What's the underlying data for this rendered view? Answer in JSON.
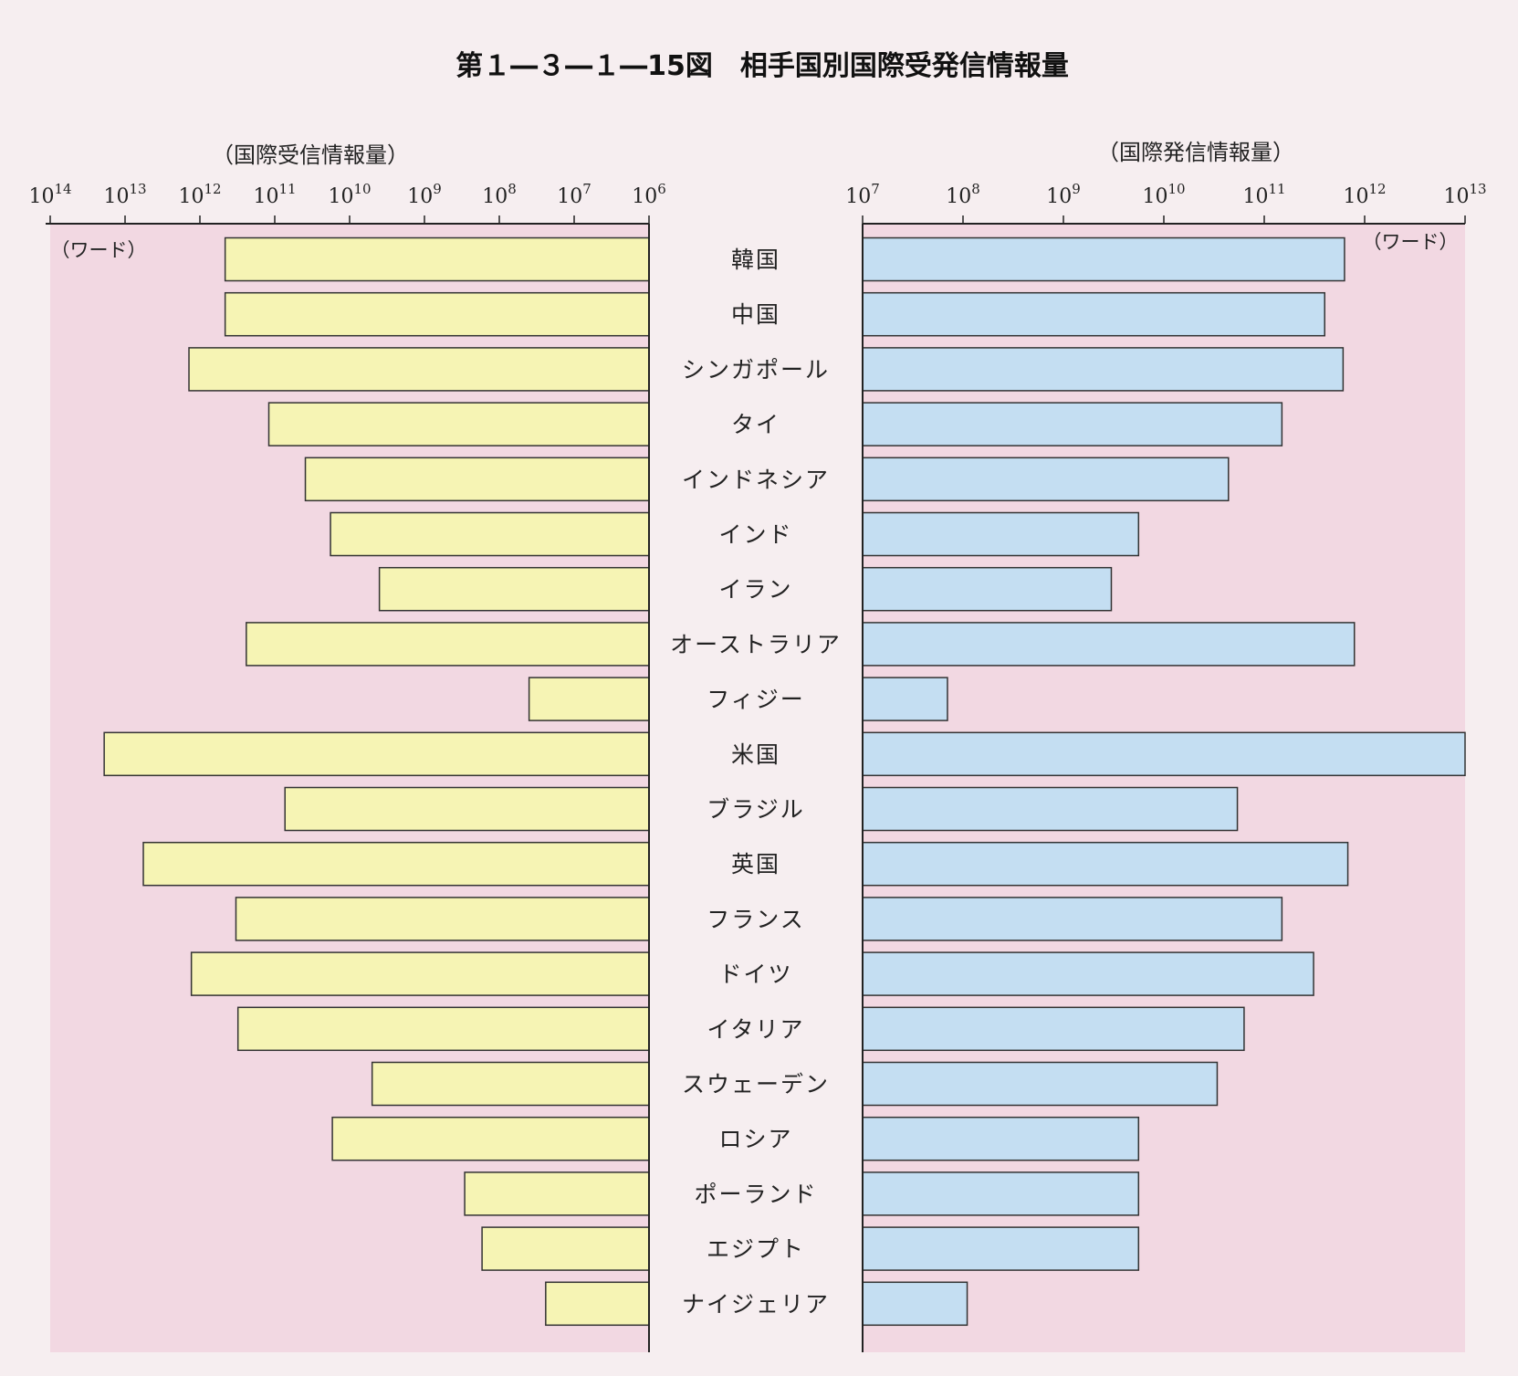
{
  "chart_data": {
    "type": "bar",
    "title": "第１―３―１―15図　相手国別国際受発信情報量",
    "left": {
      "axis_title": "（国際受信情報量）",
      "unit": "（ワード）",
      "scale": "log",
      "xlim": [
        1000000.0,
        100000000000000.0
      ],
      "direction": "right-to-left",
      "ticks": [
        {
          "base": "10",
          "exp": "14",
          "value": 100000000000000.0
        },
        {
          "base": "10",
          "exp": "13",
          "value": 10000000000000.0
        },
        {
          "base": "10",
          "exp": "12",
          "value": 1000000000000.0
        },
        {
          "base": "10",
          "exp": "11",
          "value": 100000000000.0
        },
        {
          "base": "10",
          "exp": "10",
          "value": 10000000000.0
        },
        {
          "base": "10",
          "exp": "9",
          "value": 1000000000.0
        },
        {
          "base": "10",
          "exp": "8",
          "value": 100000000.0
        },
        {
          "base": "10",
          "exp": "7",
          "value": 10000000.0
        },
        {
          "base": "10",
          "exp": "6",
          "value": 1000000.0
        }
      ],
      "bar_color": "#f6f4b4"
    },
    "right": {
      "axis_title": "（国際発信情報量）",
      "unit": "（ワード）",
      "scale": "log",
      "xlim": [
        10000000.0,
        10000000000000.0
      ],
      "direction": "left-to-right",
      "ticks": [
        {
          "base": "10",
          "exp": "7",
          "value": 10000000.0
        },
        {
          "base": "10",
          "exp": "8",
          "value": 100000000.0
        },
        {
          "base": "10",
          "exp": "9",
          "value": 1000000000.0
        },
        {
          "base": "10",
          "exp": "10",
          "value": 10000000000.0
        },
        {
          "base": "10",
          "exp": "11",
          "value": 100000000000.0
        },
        {
          "base": "10",
          "exp": "12",
          "value": 1000000000000.0
        },
        {
          "base": "10",
          "exp": "13",
          "value": 10000000000000.0
        }
      ],
      "bar_color": "#c4def2"
    },
    "categories": [
      "韓国",
      "中国",
      "シンガポール",
      "タイ",
      "インドネシア",
      "インド",
      "イラン",
      "オーストラリア",
      "フィジー",
      "米国",
      "ブラジル",
      "英国",
      "フランス",
      "ドイツ",
      "イタリア",
      "スウェーデン",
      "ロシア",
      "ポーランド",
      "エジプト",
      "ナイジェリア"
    ],
    "series": [
      {
        "values": [
          460000000000.0,
          460000000000.0,
          1400000000000.0,
          120000000000.0,
          39000000000.0,
          18000000000.0,
          4000000000.0,
          240000000000.0,
          40000000.0,
          19000000000000.0,
          73000000000.0,
          5700000000000.0,
          330000000000.0,
          1300000000000.0,
          310000000000.0,
          5000000000.0,
          17000000000.0,
          290000000.0,
          170000000.0,
          24000000.0
        ]
      },
      {
        "values": [
          630000000000.0,
          400000000000.0,
          610000000000.0,
          150000000000.0,
          44000000000.0,
          5600000000.0,
          3000000000.0,
          790000000000.0,
          70000000.0,
          10000000000000.0,
          54000000000.0,
          680000000000.0,
          150000000000.0,
          310000000000.0,
          63000000000.0,
          34000000000.0,
          5600000000.0,
          5600000000.0,
          5600000000.0,
          110000000.0
        ]
      }
    ],
    "colors": {
      "panel_background": "#f2d8e2",
      "page_background": "#f6eef0",
      "bar_stroke": "#333333",
      "axis": "#222222"
    }
  }
}
